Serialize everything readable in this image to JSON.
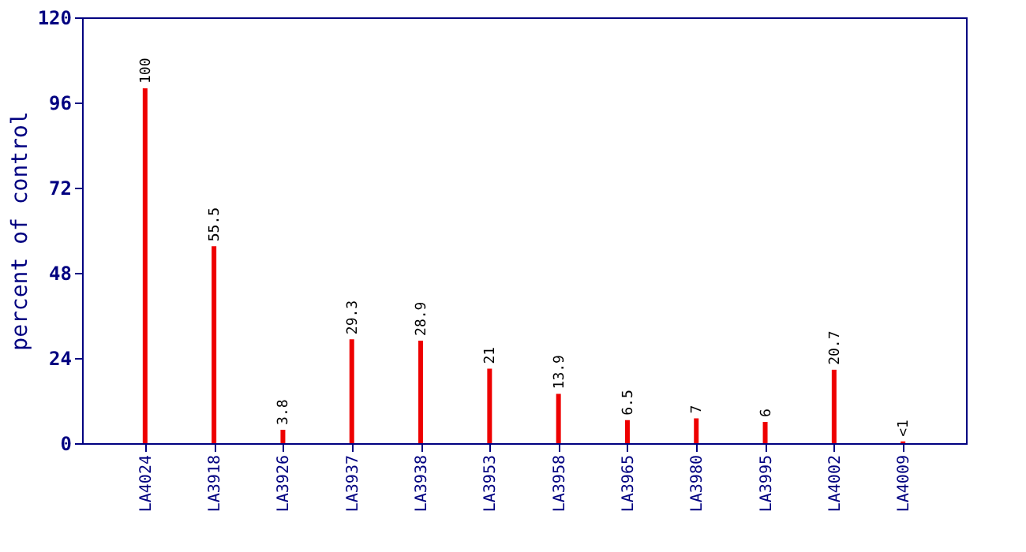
{
  "chart_data": {
    "type": "bar",
    "ylabel": "percent of control",
    "categories": [
      "LA4024",
      "LA3918",
      "LA3926",
      "LA3937",
      "LA3938",
      "LA3953",
      "LA3958",
      "LA3965",
      "LA3980",
      "LA3995",
      "LA4002",
      "LA4009"
    ],
    "values": [
      100,
      55.5,
      3.8,
      29.3,
      28.9,
      21,
      13.9,
      6.5,
      7,
      6,
      20.7,
      0.5
    ],
    "value_labels": [
      "100",
      "55.5",
      "3.8",
      "29.3",
      "28.9",
      "21",
      "13.9",
      "6.5",
      "7",
      "6",
      "20.7",
      "<1"
    ],
    "color": "#ee0000",
    "ylim": [
      0,
      120
    ],
    "yticks": [
      0,
      24,
      48,
      72,
      96,
      120
    ],
    "grid": false
  }
}
